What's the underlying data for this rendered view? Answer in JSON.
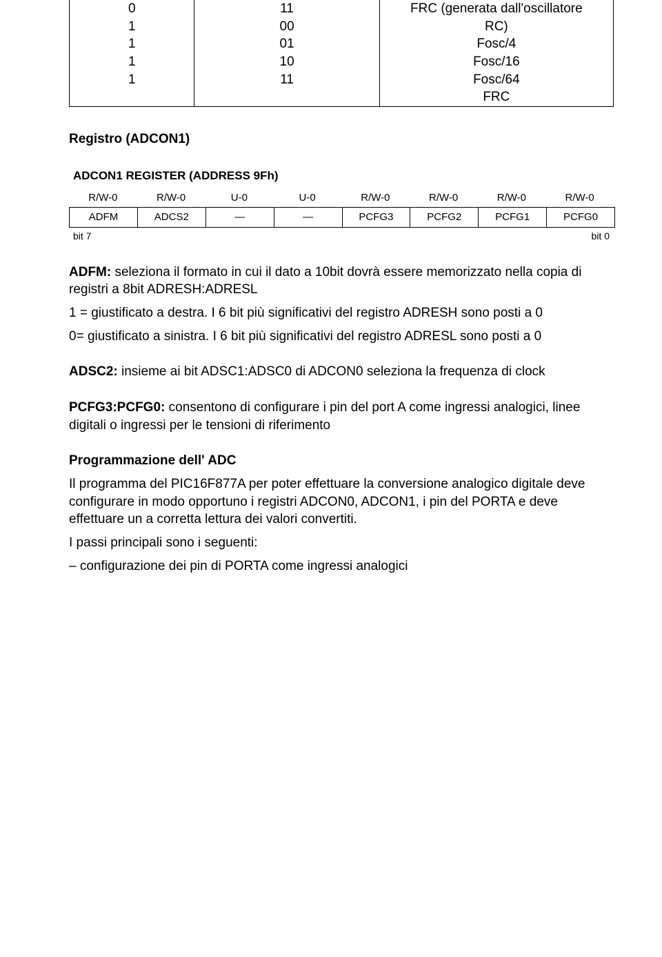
{
  "top_table": {
    "col_widths": [
      "23%",
      "34%",
      "43%"
    ],
    "rows": [
      {
        "c1": "0",
        "c2": "11",
        "c3": "FRC (generata dall'oscillatore"
      },
      {
        "c1": "1",
        "c2": "00",
        "c3": "RC)"
      },
      {
        "c1": "1",
        "c2": "01",
        "c3": "Fosc/4"
      },
      {
        "c1": "1",
        "c2": "10",
        "c3": "Fosc/16"
      },
      {
        "c1": "1",
        "c2": "11",
        "c3": "Fosc/64"
      },
      {
        "c1": "",
        "c2": "",
        "c3": "FRC"
      }
    ]
  },
  "heading_registro": "Registro (ADCON1)",
  "register": {
    "title": "ADCON1 REGISTER (ADDRESS 9Fh)",
    "rw": [
      "R/W-0",
      "R/W-0",
      "U-0",
      "U-0",
      "R/W-0",
      "R/W-0",
      "R/W-0",
      "R/W-0"
    ],
    "cells": [
      "ADFM",
      "ADCS2",
      "—",
      "—",
      "PCFG3",
      "PCFG2",
      "PCFG1",
      "PCFG0"
    ],
    "bit_left": "bit 7",
    "bit_right": "bit 0"
  },
  "adfm": {
    "label": "ADFM:",
    "line1": " seleziona il formato in cui il dato a 10bit dovrà essere memorizzato nella copia di registri a 8bit ADRESH:ADRESL",
    "line2": "1 = giustificato a destra. I 6 bit più significativi del registro ADRESH sono posti a 0",
    "line3": "0= giustificato a sinistra. I 6 bit più significativi del registro ADRESL sono posti a 0"
  },
  "adsc2": {
    "label": "ADSC2:",
    "text": " insieme ai bit ADSC1:ADSC0 di ADCON0 seleziona la frequenza di clock"
  },
  "pcfg": {
    "label": "PCFG3:PCFG0:",
    "text": " consentono di configurare i pin del port A come ingressi analogici, linee digitali o ingressi per le tensioni di riferimento"
  },
  "prog": {
    "title": "Programmazione dell' ADC",
    "p1": "Il programma del PIC16F877A per poter effettuare la conversione analogico digitale deve configurare in modo opportuno i registri ADCON0, ADCON1, i pin del PORTA e deve effettuare un a corretta lettura dei valori convertiti.",
    "p2": "I passi principali sono i seguenti:",
    "p3": "– configurazione dei pin di PORTA come ingressi analogici"
  }
}
